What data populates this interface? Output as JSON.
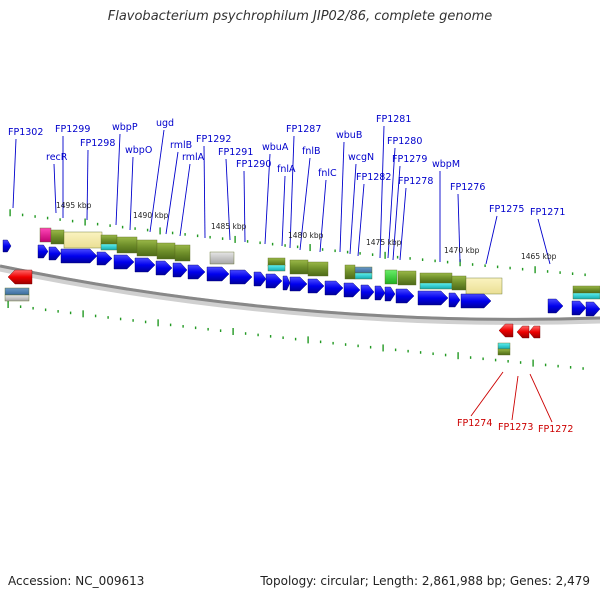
{
  "title": "Flavobacterium psychrophilum JIP02/86, complete genome",
  "footer": {
    "accession": "Accession: NC_009613",
    "summary": "Topology: circular; Length: 2,861,988 bp; Genes: 2,479"
  },
  "colors": {
    "label_forward": "#0000cc",
    "label_reverse": "#cc0000",
    "gene_forward": "#0000ee",
    "gene_reverse": "#ee0000",
    "backbone": "#888888",
    "tick": "#229922"
  },
  "kbp_labels": [
    "1495 kbp",
    "1490 kbp",
    "1485 kbp",
    "1480 kbp",
    "1475 kbp",
    "1470 kbp",
    "1465 kbp"
  ],
  "gene_labels_top": [
    "FP1302",
    "recR",
    "FP1299",
    "FP1298",
    "wbpP",
    "wbpO",
    "ugd",
    "rmlB",
    "rmlA",
    "FP1292",
    "FP1291",
    "FP1290",
    "wbuA",
    "fnlA",
    "FP1287",
    "fnlB",
    "fnlC",
    "wbuB",
    "wcgN",
    "FP1282",
    "FP1281",
    "FP1280",
    "FP1279",
    "FP1278",
    "wbpM",
    "FP1276",
    "FP1275",
    "FP1271"
  ],
  "gene_labels_bottom": [
    "FP1274",
    "FP1273",
    "FP1272"
  ]
}
